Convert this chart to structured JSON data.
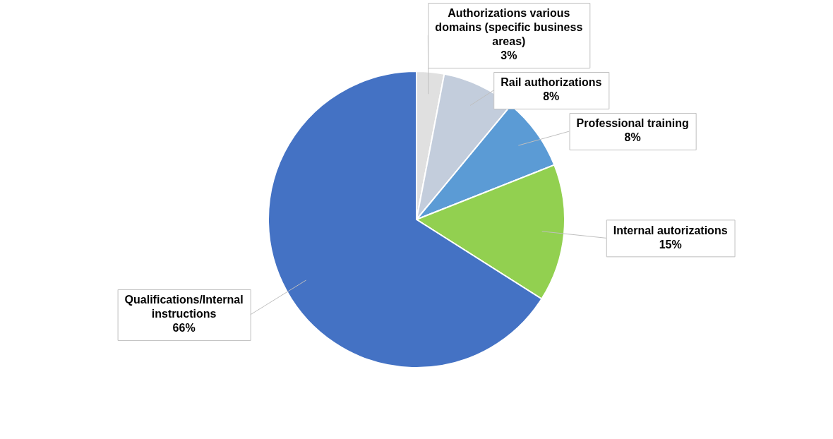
{
  "chart_data": {
    "type": "pie",
    "categories": [
      "Authorizations various domains (specific business areas)",
      "Rail authorizations",
      "Professional training",
      "Internal autorizations",
      "Qualifications/Internal instructions"
    ],
    "values": [
      3,
      8,
      8,
      15,
      66
    ],
    "colors": [
      "#e0e0e0",
      "#c3cddc",
      "#5b9bd5",
      "#92d050",
      "#4472c4"
    ],
    "value_labels": [
      "3%",
      "8%",
      "8%",
      "15%",
      "66%"
    ],
    "legend": false
  }
}
